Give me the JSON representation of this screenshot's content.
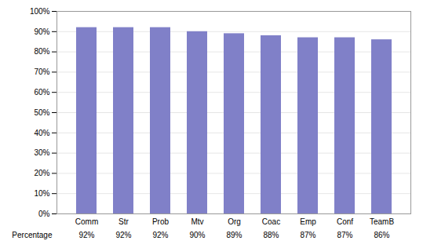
{
  "chart_data": {
    "type": "bar",
    "categories": [
      "Comm",
      "Str",
      "Prob",
      "Mtv",
      "Org",
      "Coac",
      "Emp",
      "Conf",
      "TeamB"
    ],
    "values": [
      92,
      92,
      92,
      90,
      89,
      88,
      87,
      87,
      86
    ],
    "value_labels": [
      "92%",
      "92%",
      "92%",
      "90%",
      "89%",
      "88%",
      "87%",
      "87%",
      "86%"
    ],
    "data_labels": true,
    "annotations": [
      "Percentage"
    ],
    "color": "#8080c8",
    "ylim": [
      0,
      100
    ],
    "yticks": [
      {
        "value": 0,
        "label": "0%"
      },
      {
        "value": 10,
        "label": "10%"
      },
      {
        "value": 20,
        "label": "20%"
      },
      {
        "value": 30,
        "label": "30%"
      },
      {
        "value": 40,
        "label": "40%"
      },
      {
        "value": 50,
        "label": "50%"
      },
      {
        "value": 60,
        "label": "60%"
      },
      {
        "value": 70,
        "label": "70%"
      },
      {
        "value": 80,
        "label": "80%"
      },
      {
        "value": 90,
        "label": "90%"
      },
      {
        "value": 100,
        "label": "100%"
      }
    ],
    "grid": true
  }
}
